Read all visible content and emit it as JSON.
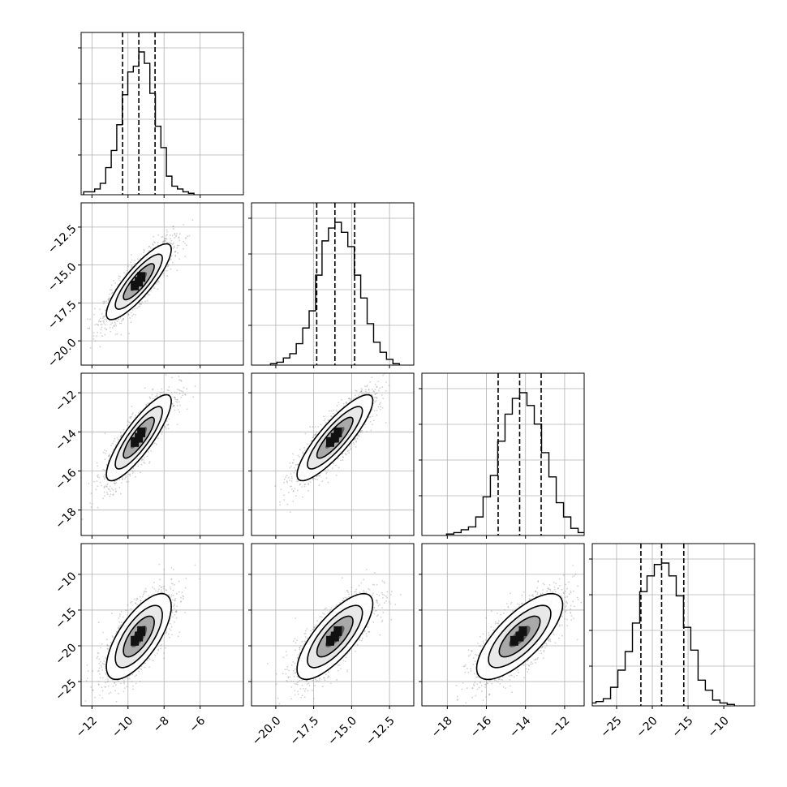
{
  "figure": {
    "type": "corner-plot",
    "n_params": 4,
    "grid": true,
    "histogram_quantile_lines": "dashed",
    "contour_fill_color": "#000000",
    "scatter_color": "#9a9a9a"
  },
  "chart_data": {
    "type": "corner",
    "params": [
      {
        "median": -9.4,
        "q16": -10.3,
        "q84": -8.5,
        "ticks": [
          -12,
          -10,
          -8,
          -6
        ],
        "tick_labels": [
          "−12",
          "−10",
          "−8",
          "−6"
        ],
        "range": [
          -12.6,
          -3.6
        ]
      },
      {
        "median": -16.1,
        "q16": -17.3,
        "q84": -14.8,
        "ticks": [
          -20.0,
          -17.5,
          -15.0,
          -12.5
        ],
        "tick_labels": [
          "−20.0",
          "−17.5",
          "−15.0",
          "−12.5"
        ],
        "range": [
          -21.6,
          -10.9
        ]
      },
      {
        "median": -14.3,
        "q16": -15.4,
        "q84": -13.2,
        "ticks": [
          -18,
          -16,
          -14,
          -12
        ],
        "tick_labels": [
          "−18",
          "−16",
          "−14",
          "−12"
        ],
        "range": [
          -19.3,
          -11.0
        ]
      },
      {
        "median": -18.7,
        "q16": -21.6,
        "q84": -15.6,
        "ticks": [
          -25,
          -20,
          -15,
          -10
        ],
        "tick_labels": [
          "−25",
          "−20",
          "−15",
          "−10"
        ],
        "range": [
          -28.4,
          -5.7
        ]
      }
    ],
    "histograms": [
      [
        0.02,
        0.02,
        0.04,
        0.08,
        0.19,
        0.31,
        0.49,
        0.7,
        0.86,
        0.9,
        1.0,
        0.92,
        0.71,
        0.48,
        0.33,
        0.13,
        0.06,
        0.04,
        0.02,
        0.01
      ],
      [
        0.01,
        0.02,
        0.05,
        0.08,
        0.15,
        0.26,
        0.38,
        0.63,
        0.87,
        0.96,
        1.0,
        0.93,
        0.83,
        0.63,
        0.47,
        0.29,
        0.16,
        0.09,
        0.04,
        0.01
      ],
      [
        0.01,
        0.02,
        0.04,
        0.06,
        0.13,
        0.27,
        0.42,
        0.66,
        0.85,
        0.96,
        1.0,
        0.91,
        0.78,
        0.58,
        0.41,
        0.23,
        0.13,
        0.05,
        0.02,
        0.01
      ],
      [
        0.02,
        0.03,
        0.05,
        0.13,
        0.25,
        0.38,
        0.58,
        0.8,
        0.91,
        0.99,
        1.0,
        0.91,
        0.77,
        0.55,
        0.39,
        0.18,
        0.11,
        0.04,
        0.02,
        0.01
      ]
    ],
    "correlations": [
      [
        1.0,
        0.85,
        0.85,
        0.7
      ],
      [
        0.85,
        1.0,
        0.86,
        0.76
      ],
      [
        0.85,
        0.86,
        1.0,
        0.74
      ],
      [
        0.7,
        0.76,
        0.74,
        1.0
      ]
    ]
  }
}
